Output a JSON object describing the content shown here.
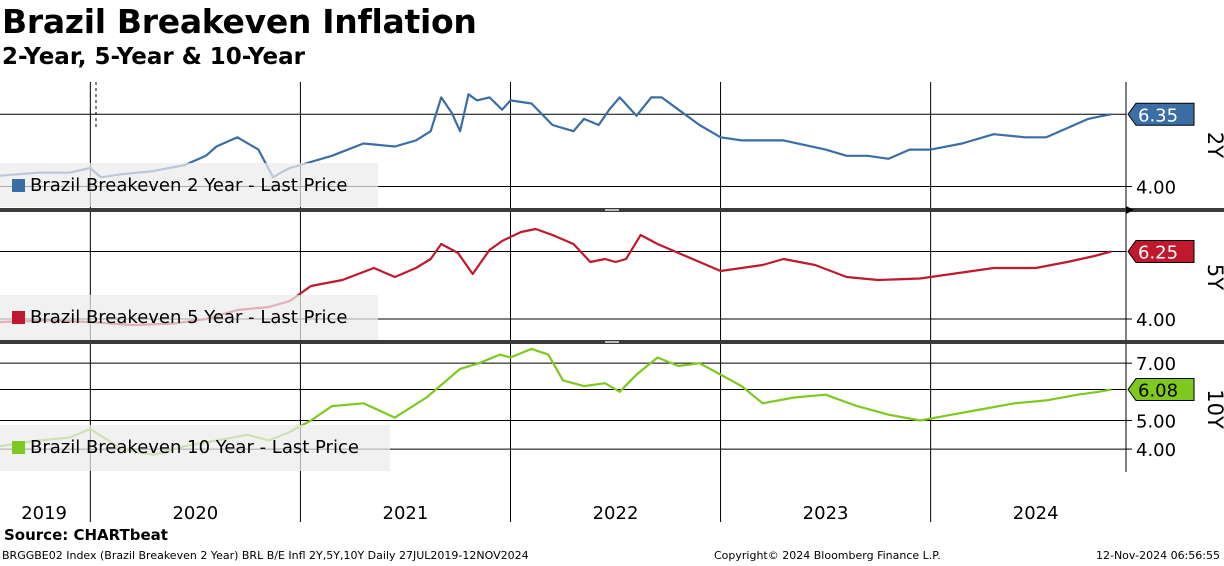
{
  "header": {
    "title": "Brazil Breakeven Inflation",
    "subtitle": "2-Year, 5-Year & 10-Year"
  },
  "footer": {
    "source": "Source: CHARTbeat",
    "ticker_line": "BRGGBE02 Index (Brazil Breakeven 2 Year) BRL B/E Infl 2Y,5Y,10Y  Daily 27JUL2019-12NOV2024",
    "copyright": "Copyright© 2024 Bloomberg Finance L.P.",
    "timestamp": "12-Nov-2024 06:56:55"
  },
  "chart_data": [
    {
      "type": "line",
      "panel_label": "2Y",
      "legend": "Brazil Breakeven 2 Year - Last Price",
      "last_value_label": "6.35",
      "color": "#3a6ea5",
      "ylim": [
        3.3,
        7.4
      ],
      "y_ticks": [
        {
          "value": 4.0,
          "label": "4.00"
        }
      ],
      "gridlines": [
        4.0,
        6.35
      ],
      "x": [
        2019.57,
        2019.75,
        2019.9,
        2020.0,
        2020.05,
        2020.15,
        2020.3,
        2020.45,
        2020.55,
        2020.6,
        2020.7,
        2020.8,
        2020.87,
        2020.92,
        2020.95,
        2021.0,
        2021.15,
        2021.3,
        2021.45,
        2021.55,
        2021.62,
        2021.67,
        2021.72,
        2021.76,
        2021.8,
        2021.84,
        2021.9,
        2021.96,
        2022.0,
        2022.1,
        2022.2,
        2022.3,
        2022.35,
        2022.42,
        2022.47,
        2022.52,
        2022.6,
        2022.67,
        2022.72,
        2022.8,
        2022.9,
        2023.0,
        2023.1,
        2023.3,
        2023.5,
        2023.6,
        2023.7,
        2023.8,
        2023.9,
        2024.0,
        2024.15,
        2024.3,
        2024.45,
        2024.55,
        2024.65,
        2024.75,
        2024.82,
        2024.86
      ],
      "values": [
        4.35,
        4.45,
        4.45,
        4.6,
        4.3,
        4.4,
        4.5,
        4.7,
        5.0,
        5.3,
        5.6,
        5.2,
        4.3,
        4.5,
        4.6,
        4.7,
        5.0,
        5.4,
        5.3,
        5.5,
        5.8,
        6.9,
        6.4,
        5.8,
        7.0,
        6.8,
        6.9,
        6.5,
        6.8,
        6.7,
        6.0,
        5.8,
        6.2,
        6.0,
        6.5,
        6.9,
        6.3,
        6.9,
        6.9,
        6.5,
        6.0,
        5.6,
        5.5,
        5.5,
        5.2,
        5.0,
        5.0,
        4.9,
        5.2,
        5.2,
        5.4,
        5.7,
        5.6,
        5.6,
        5.9,
        6.2,
        6.3,
        6.35
      ]
    },
    {
      "type": "line",
      "panel_label": "5Y",
      "legend": "Brazil Breakeven 5 Year - Last Price",
      "last_value_label": "6.25",
      "color": "#c0182d",
      "ylim": [
        3.3,
        7.5
      ],
      "y_ticks": [
        {
          "value": 4.0,
          "label": "4.00"
        }
      ],
      "gridlines": [
        4.0,
        6.25
      ],
      "x": [
        2019.57,
        2019.8,
        2020.0,
        2020.2,
        2020.4,
        2020.55,
        2020.7,
        2020.85,
        2020.95,
        2021.05,
        2021.2,
        2021.35,
        2021.45,
        2021.55,
        2021.62,
        2021.67,
        2021.75,
        2021.82,
        2021.9,
        2021.96,
        2022.05,
        2022.12,
        2022.2,
        2022.3,
        2022.38,
        2022.45,
        2022.5,
        2022.55,
        2022.62,
        2022.7,
        2023.0,
        2023.2,
        2023.3,
        2023.45,
        2023.6,
        2023.75,
        2023.95,
        2024.1,
        2024.3,
        2024.5,
        2024.65,
        2024.78,
        2024.86
      ],
      "values": [
        3.9,
        3.95,
        3.9,
        3.8,
        3.85,
        4.0,
        4.3,
        4.4,
        4.6,
        5.1,
        5.3,
        5.7,
        5.4,
        5.7,
        6.0,
        6.5,
        6.2,
        5.5,
        6.3,
        6.6,
        6.9,
        7.0,
        6.8,
        6.5,
        5.9,
        6.0,
        5.9,
        6.0,
        6.8,
        6.5,
        5.6,
        5.8,
        6.0,
        5.8,
        5.4,
        5.3,
        5.35,
        5.5,
        5.7,
        5.7,
        5.9,
        6.1,
        6.25
      ]
    },
    {
      "type": "line",
      "panel_label": "10Y",
      "legend": "Brazil Breakeven 10 Year - Last Price",
      "last_value_label": "6.08",
      "color": "#7ec820",
      "ylim": [
        3.2,
        7.6
      ],
      "y_ticks": [
        {
          "value": 7.0,
          "label": "7.00"
        },
        {
          "value": 5.0,
          "label": "5.00"
        },
        {
          "value": 4.0,
          "label": "4.00"
        }
      ],
      "gridlines": [
        7.0,
        6.08,
        5.0,
        4.0
      ],
      "x": [
        2019.57,
        2019.75,
        2019.9,
        2020.0,
        2020.15,
        2020.3,
        2020.45,
        2020.6,
        2020.75,
        2020.85,
        2020.95,
        2021.05,
        2021.15,
        2021.3,
        2021.45,
        2021.6,
        2021.76,
        2021.85,
        2021.95,
        2022.0,
        2022.1,
        2022.18,
        2022.25,
        2022.35,
        2022.45,
        2022.52,
        2022.6,
        2022.7,
        2022.8,
        2022.9,
        2023.0,
        2023.1,
        2023.2,
        2023.35,
        2023.5,
        2023.65,
        2023.8,
        2023.95,
        2024.1,
        2024.25,
        2024.4,
        2024.55,
        2024.7,
        2024.8,
        2024.86
      ],
      "values": [
        4.1,
        4.3,
        4.4,
        4.7,
        4.0,
        3.8,
        4.1,
        4.3,
        4.5,
        4.3,
        4.6,
        5.0,
        5.5,
        5.6,
        5.1,
        5.8,
        6.8,
        7.0,
        7.3,
        7.2,
        7.5,
        7.3,
        6.4,
        6.2,
        6.3,
        6.0,
        6.6,
        7.2,
        6.9,
        7.0,
        6.6,
        6.2,
        5.6,
        5.8,
        5.9,
        5.5,
        5.2,
        5.0,
        5.2,
        5.4,
        5.6,
        5.7,
        5.9,
        6.0,
        6.08
      ]
    }
  ],
  "x_axis": {
    "year_labels": [
      {
        "label": "2019",
        "pos": 2019.78
      },
      {
        "label": "2020",
        "pos": 2020.5
      },
      {
        "label": "2021",
        "pos": 2021.5
      },
      {
        "label": "2022",
        "pos": 2022.5
      },
      {
        "label": "2023",
        "pos": 2023.5
      },
      {
        "label": "2024",
        "pos": 2024.5
      }
    ],
    "year_boundaries": [
      2020.0,
      2021.0,
      2022.0,
      2023.0,
      2024.0
    ]
  }
}
